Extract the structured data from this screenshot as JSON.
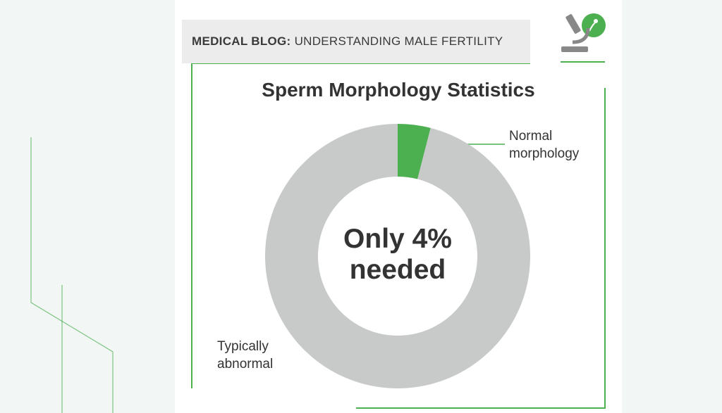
{
  "header": {
    "label": "MEDICAL BLOG:",
    "text": "UNDERSTANDING MALE FERTILITY"
  },
  "chart_data": {
    "type": "pie",
    "donut": true,
    "title": "Sperm Morphology Statistics",
    "categories": [
      "Normal morphology",
      "Typically abnormal"
    ],
    "values": [
      4,
      96
    ],
    "colors": [
      "#4caf50",
      "#c8c9c9"
    ],
    "center_text": "Only 4% needed"
  }
}
